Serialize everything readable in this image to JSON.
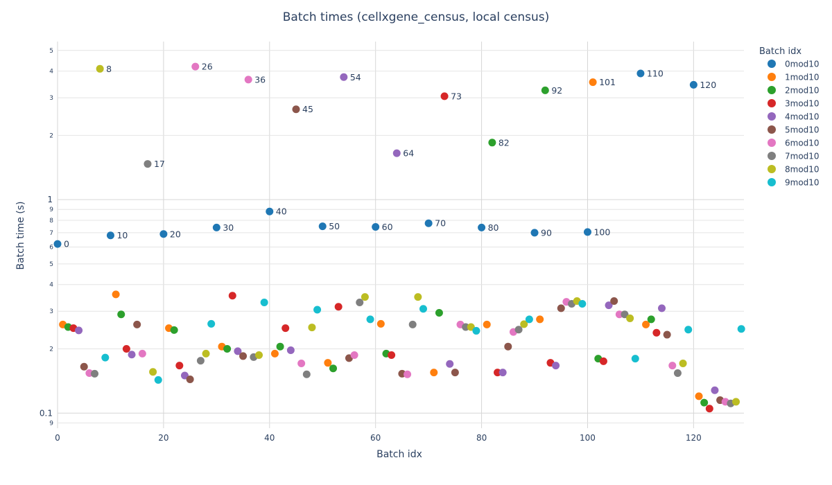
{
  "chart_data": {
    "type": "scatter",
    "title": "Batch times (cellxgene_census, local census)",
    "xlabel": "Batch idx",
    "ylabel": "Batch time (s)",
    "x_range": [
      0,
      129.5
    ],
    "y_range": [
      0.085,
      5.5
    ],
    "y_scale": "log",
    "x_ticks": [
      "0",
      "20",
      "40",
      "60",
      "80",
      "100",
      "120"
    ],
    "y_major_ticks": [
      {
        "v": 0.1,
        "label": "0.1"
      },
      {
        "v": 1,
        "label": "1"
      }
    ],
    "y_minor_ticks": [
      {
        "v": 0.09,
        "label": "9"
      },
      {
        "v": 0.2,
        "label": "2"
      },
      {
        "v": 0.3,
        "label": "3"
      },
      {
        "v": 0.4,
        "label": "4"
      },
      {
        "v": 0.5,
        "label": "5"
      },
      {
        "v": 0.6,
        "label": "6"
      },
      {
        "v": 0.7,
        "label": "7"
      },
      {
        "v": 0.8,
        "label": "8"
      },
      {
        "v": 0.9,
        "label": "9"
      },
      {
        "v": 2,
        "label": "2"
      },
      {
        "v": 3,
        "label": "3"
      },
      {
        "v": 4,
        "label": "4"
      },
      {
        "v": 5,
        "label": "5"
      }
    ],
    "grid": true,
    "legend_title": "Batch idx",
    "legend_position": "right",
    "series": [
      {
        "name": "0mod10",
        "color": "#1f77b4",
        "points": [
          [
            0,
            0.62
          ],
          [
            10,
            0.68
          ],
          [
            20,
            0.69
          ],
          [
            30,
            0.74
          ],
          [
            40,
            0.88
          ],
          [
            50,
            0.75
          ],
          [
            60,
            0.745
          ],
          [
            70,
            0.775
          ],
          [
            80,
            0.74
          ],
          [
            90,
            0.7
          ],
          [
            100,
            0.705
          ],
          [
            110,
            3.9
          ],
          [
            120,
            3.45
          ]
        ]
      },
      {
        "name": "1mod10",
        "color": "#ff7f0e",
        "points": [
          [
            1,
            0.26
          ],
          [
            11,
            0.36
          ],
          [
            21,
            0.25
          ],
          [
            31,
            0.205
          ],
          [
            41,
            0.19
          ],
          [
            51,
            0.172
          ],
          [
            61,
            0.262
          ],
          [
            71,
            0.155
          ],
          [
            81,
            0.26
          ],
          [
            91,
            0.275
          ],
          [
            101,
            3.55
          ],
          [
            111,
            0.26
          ],
          [
            121,
            0.12
          ]
        ]
      },
      {
        "name": "2mod10",
        "color": "#2ca02c",
        "points": [
          [
            2,
            0.253
          ],
          [
            12,
            0.29
          ],
          [
            22,
            0.245
          ],
          [
            32,
            0.2
          ],
          [
            42,
            0.205
          ],
          [
            52,
            0.162
          ],
          [
            62,
            0.19
          ],
          [
            72,
            0.295
          ],
          [
            82,
            1.85
          ],
          [
            92,
            3.25
          ],
          [
            102,
            0.18
          ],
          [
            112,
            0.275
          ],
          [
            122,
            0.112
          ]
        ]
      },
      {
        "name": "3mod10",
        "color": "#d62728",
        "points": [
          [
            3,
            0.25
          ],
          [
            13,
            0.2
          ],
          [
            23,
            0.167
          ],
          [
            33,
            0.355
          ],
          [
            43,
            0.25
          ],
          [
            53,
            0.315
          ],
          [
            63,
            0.187
          ],
          [
            73,
            3.05
          ],
          [
            83,
            0.155
          ],
          [
            93,
            0.172
          ],
          [
            103,
            0.175
          ],
          [
            113,
            0.238
          ],
          [
            123,
            0.105
          ]
        ]
      },
      {
        "name": "4mod10",
        "color": "#9467bd",
        "points": [
          [
            4,
            0.244
          ],
          [
            14,
            0.188
          ],
          [
            24,
            0.15
          ],
          [
            34,
            0.195
          ],
          [
            44,
            0.197
          ],
          [
            54,
            3.75
          ],
          [
            64,
            1.65
          ],
          [
            74,
            0.17
          ],
          [
            84,
            0.155
          ],
          [
            94,
            0.167
          ],
          [
            104,
            0.32
          ],
          [
            114,
            0.31
          ],
          [
            124,
            0.128
          ]
        ]
      },
      {
        "name": "5mod10",
        "color": "#8c564b",
        "points": [
          [
            5,
            0.165
          ],
          [
            15,
            0.26
          ],
          [
            25,
            0.144
          ],
          [
            35,
            0.185
          ],
          [
            45,
            2.65
          ],
          [
            55,
            0.181
          ],
          [
            65,
            0.153
          ],
          [
            75,
            0.155
          ],
          [
            85,
            0.205
          ],
          [
            95,
            0.31
          ],
          [
            105,
            0.335
          ],
          [
            115,
            0.233
          ],
          [
            125,
            0.115
          ]
        ]
      },
      {
        "name": "6mod10",
        "color": "#e377c2",
        "points": [
          [
            6,
            0.154
          ],
          [
            16,
            0.19
          ],
          [
            26,
            4.2
          ],
          [
            36,
            3.65
          ],
          [
            46,
            0.171
          ],
          [
            56,
            0.187
          ],
          [
            66,
            0.152
          ],
          [
            76,
            0.26
          ],
          [
            86,
            0.24
          ],
          [
            96,
            0.332
          ],
          [
            106,
            0.29
          ],
          [
            116,
            0.167
          ],
          [
            126,
            0.113
          ]
        ]
      },
      {
        "name": "7mod10",
        "color": "#7f7f7f",
        "points": [
          [
            7,
            0.153
          ],
          [
            17,
            1.47
          ],
          [
            27,
            0.176
          ],
          [
            37,
            0.183
          ],
          [
            47,
            0.152
          ],
          [
            57,
            0.33
          ],
          [
            67,
            0.26
          ],
          [
            77,
            0.253
          ],
          [
            87,
            0.246
          ],
          [
            97,
            0.325
          ],
          [
            107,
            0.29
          ],
          [
            117,
            0.154
          ],
          [
            127,
            0.111
          ]
        ]
      },
      {
        "name": "8mod10",
        "color": "#bcbd22",
        "points": [
          [
            8,
            4.1
          ],
          [
            18,
            0.156
          ],
          [
            28,
            0.19
          ],
          [
            38,
            0.187
          ],
          [
            48,
            0.252
          ],
          [
            58,
            0.35
          ],
          [
            68,
            0.35
          ],
          [
            78,
            0.253
          ],
          [
            88,
            0.261
          ],
          [
            98,
            0.335
          ],
          [
            108,
            0.278
          ],
          [
            118,
            0.171
          ],
          [
            128,
            0.113
          ]
        ]
      },
      {
        "name": "9mod10",
        "color": "#17becf",
        "points": [
          [
            9,
            0.182
          ],
          [
            19,
            0.143
          ],
          [
            29,
            0.262
          ],
          [
            39,
            0.33
          ],
          [
            49,
            0.305
          ],
          [
            59,
            0.275
          ],
          [
            69,
            0.308
          ],
          [
            79,
            0.243
          ],
          [
            89,
            0.275
          ],
          [
            99,
            0.325
          ],
          [
            109,
            0.18
          ],
          [
            119,
            0.246
          ],
          [
            129,
            0.248
          ]
        ]
      }
    ],
    "point_labels": [
      {
        "x": 0,
        "y": 0.62,
        "text": "0"
      },
      {
        "x": 8,
        "y": 4.1,
        "text": "8"
      },
      {
        "x": 10,
        "y": 0.68,
        "text": "10"
      },
      {
        "x": 17,
        "y": 1.47,
        "text": "17"
      },
      {
        "x": 20,
        "y": 0.69,
        "text": "20"
      },
      {
        "x": 26,
        "y": 4.2,
        "text": "26"
      },
      {
        "x": 30,
        "y": 0.74,
        "text": "30"
      },
      {
        "x": 36,
        "y": 3.65,
        "text": "36"
      },
      {
        "x": 40,
        "y": 0.88,
        "text": "40"
      },
      {
        "x": 45,
        "y": 2.65,
        "text": "45"
      },
      {
        "x": 50,
        "y": 0.75,
        "text": "50"
      },
      {
        "x": 54,
        "y": 3.75,
        "text": "54"
      },
      {
        "x": 60,
        "y": 0.745,
        "text": "60"
      },
      {
        "x": 64,
        "y": 1.65,
        "text": "64"
      },
      {
        "x": 70,
        "y": 0.775,
        "text": "70"
      },
      {
        "x": 73,
        "y": 3.05,
        "text": "73"
      },
      {
        "x": 80,
        "y": 0.74,
        "text": "80"
      },
      {
        "x": 82,
        "y": 1.85,
        "text": "82"
      },
      {
        "x": 90,
        "y": 0.7,
        "text": "90"
      },
      {
        "x": 92,
        "y": 3.25,
        "text": "92"
      },
      {
        "x": 100,
        "y": 0.705,
        "text": "100"
      },
      {
        "x": 101,
        "y": 3.55,
        "text": "101"
      },
      {
        "x": 110,
        "y": 3.9,
        "text": "110"
      },
      {
        "x": 120,
        "y": 3.45,
        "text": "120"
      }
    ]
  }
}
